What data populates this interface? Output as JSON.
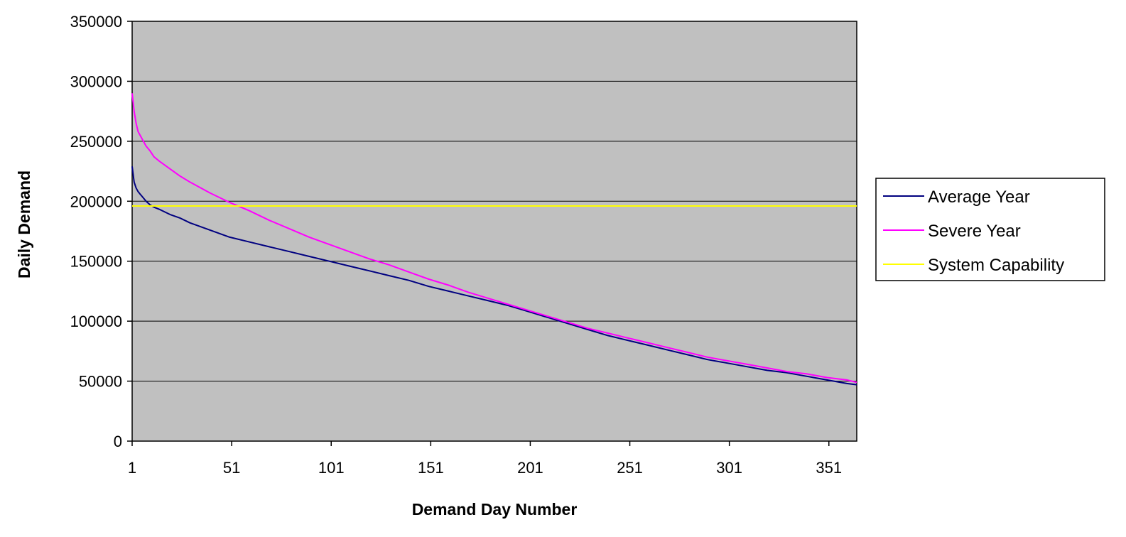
{
  "chart_data": {
    "type": "line",
    "title": "",
    "xlabel": "Demand Day Number",
    "ylabel": "Daily Demand",
    "xlim": [
      1,
      365
    ],
    "ylim": [
      0,
      350000
    ],
    "x_ticks": [
      1,
      51,
      101,
      151,
      201,
      251,
      301,
      351
    ],
    "y_ticks": [
      0,
      50000,
      100000,
      150000,
      200000,
      250000,
      300000,
      350000
    ],
    "x_tick_labels": [
      "1",
      "51",
      "101",
      "151",
      "201",
      "251",
      "301",
      "351"
    ],
    "y_tick_labels": [
      "0",
      "50000",
      "100000",
      "150000",
      "200000",
      "250000",
      "300000",
      "350000"
    ],
    "grid": "horizontal",
    "plot_background": "#c0c0c0",
    "legend_position": "right",
    "series": [
      {
        "name": "Average Year",
        "color": "#000080",
        "x": [
          1,
          2,
          3,
          4,
          5,
          6,
          8,
          10,
          12,
          15,
          20,
          25,
          30,
          40,
          50,
          60,
          70,
          80,
          90,
          100,
          110,
          120,
          130,
          140,
          150,
          160,
          170,
          180,
          190,
          200,
          210,
          220,
          230,
          240,
          250,
          260,
          270,
          280,
          290,
          300,
          310,
          320,
          330,
          340,
          350,
          360,
          365
        ],
        "y": [
          229000,
          216000,
          211000,
          208000,
          206000,
          204000,
          200000,
          197000,
          195000,
          193000,
          189000,
          186000,
          182000,
          176000,
          170000,
          166000,
          162000,
          158000,
          154000,
          150000,
          146000,
          142000,
          138000,
          134000,
          129000,
          125000,
          121000,
          117000,
          113000,
          108000,
          103000,
          98000,
          93000,
          88000,
          84000,
          80000,
          76000,
          72000,
          68000,
          65000,
          62000,
          59000,
          57000,
          54000,
          51000,
          48000,
          47000
        ]
      },
      {
        "name": "Severe Year",
        "color": "#ff00ff",
        "x": [
          1,
          2,
          3,
          4,
          5,
          6,
          8,
          10,
          12,
          15,
          20,
          25,
          30,
          40,
          50,
          60,
          70,
          80,
          90,
          100,
          110,
          120,
          130,
          140,
          150,
          160,
          170,
          180,
          190,
          200,
          210,
          220,
          230,
          240,
          250,
          260,
          270,
          280,
          290,
          300,
          310,
          320,
          330,
          340,
          350,
          360,
          365
        ],
        "y": [
          290000,
          275000,
          265000,
          258000,
          255000,
          252000,
          246000,
          242000,
          237000,
          233000,
          227000,
          221000,
          216000,
          207000,
          199000,
          192000,
          184000,
          177000,
          170000,
          164000,
          158000,
          152000,
          147000,
          141000,
          135000,
          130000,
          124000,
          119000,
          114000,
          109000,
          104000,
          99000,
          94000,
          90000,
          86000,
          82000,
          78000,
          74000,
          70000,
          67000,
          64000,
          61000,
          58000,
          56000,
          53000,
          51000,
          49000
        ]
      },
      {
        "name": "System Capability",
        "color": "#ffff00",
        "x": [
          1,
          365
        ],
        "y": [
          196000,
          196000
        ]
      }
    ]
  }
}
